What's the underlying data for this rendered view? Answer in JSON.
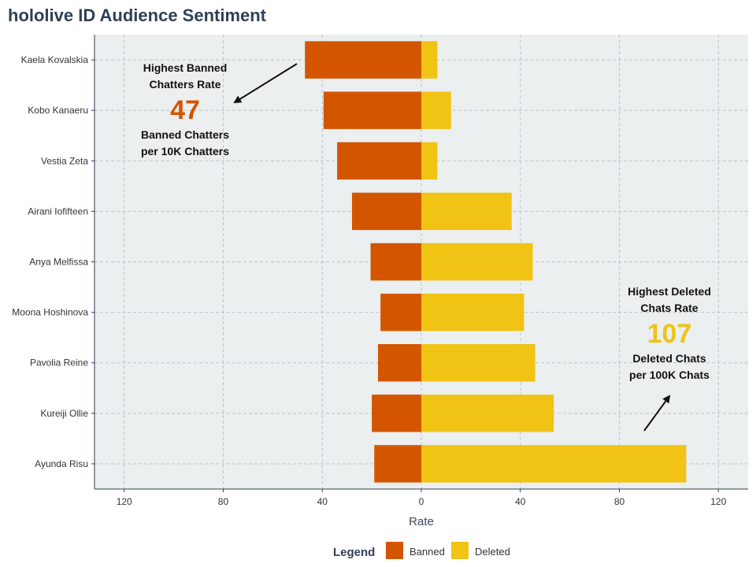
{
  "chart_data": {
    "type": "bar",
    "orientation": "horizontal-diverging",
    "title": "hololive ID Audience Sentiment",
    "xlabel": "Rate",
    "ylabel": "",
    "xlim": [
      -132,
      132
    ],
    "xticks": [
      -120,
      -80,
      -40,
      0,
      40,
      80,
      120
    ],
    "xtick_labels": [
      "120",
      "80",
      "40",
      "0",
      "40",
      "80",
      "120"
    ],
    "grid": true,
    "categories": [
      "Kaela Kovalskia",
      "Kobo Kanaeru",
      "Vestia Zeta",
      "Airani Iofifteen",
      "Anya Melfissa",
      "Moona Hoshinova",
      "Pavolia Reine",
      "Kureiji Ollie",
      "Ayunda Risu"
    ],
    "series": [
      {
        "name": "Banned",
        "color": "#d45500",
        "values": [
          47,
          39.5,
          34,
          28,
          20.5,
          16.5,
          17.5,
          20,
          19
        ]
      },
      {
        "name": "Deleted",
        "color": "#f0c314",
        "values": [
          6.5,
          12,
          6.5,
          36.5,
          45,
          41.5,
          46,
          53.5,
          107
        ]
      }
    ],
    "legend": {
      "title": "Legend",
      "position": "bottom"
    },
    "annotations": [
      {
        "series": "Banned",
        "heading_line1": "Highest Banned",
        "heading_line2": "Chatters Rate",
        "value": "47",
        "caption_line1": "Banned Chatters",
        "caption_line2": "per 10K Chatters",
        "color": "#d45500"
      },
      {
        "series": "Deleted",
        "heading_line1": "Highest Deleted",
        "heading_line2": "Chats Rate",
        "value": "107",
        "caption_line1": "Deleted Chats",
        "caption_line2": "per 100K Chats",
        "color": "#f0c314"
      }
    ]
  }
}
